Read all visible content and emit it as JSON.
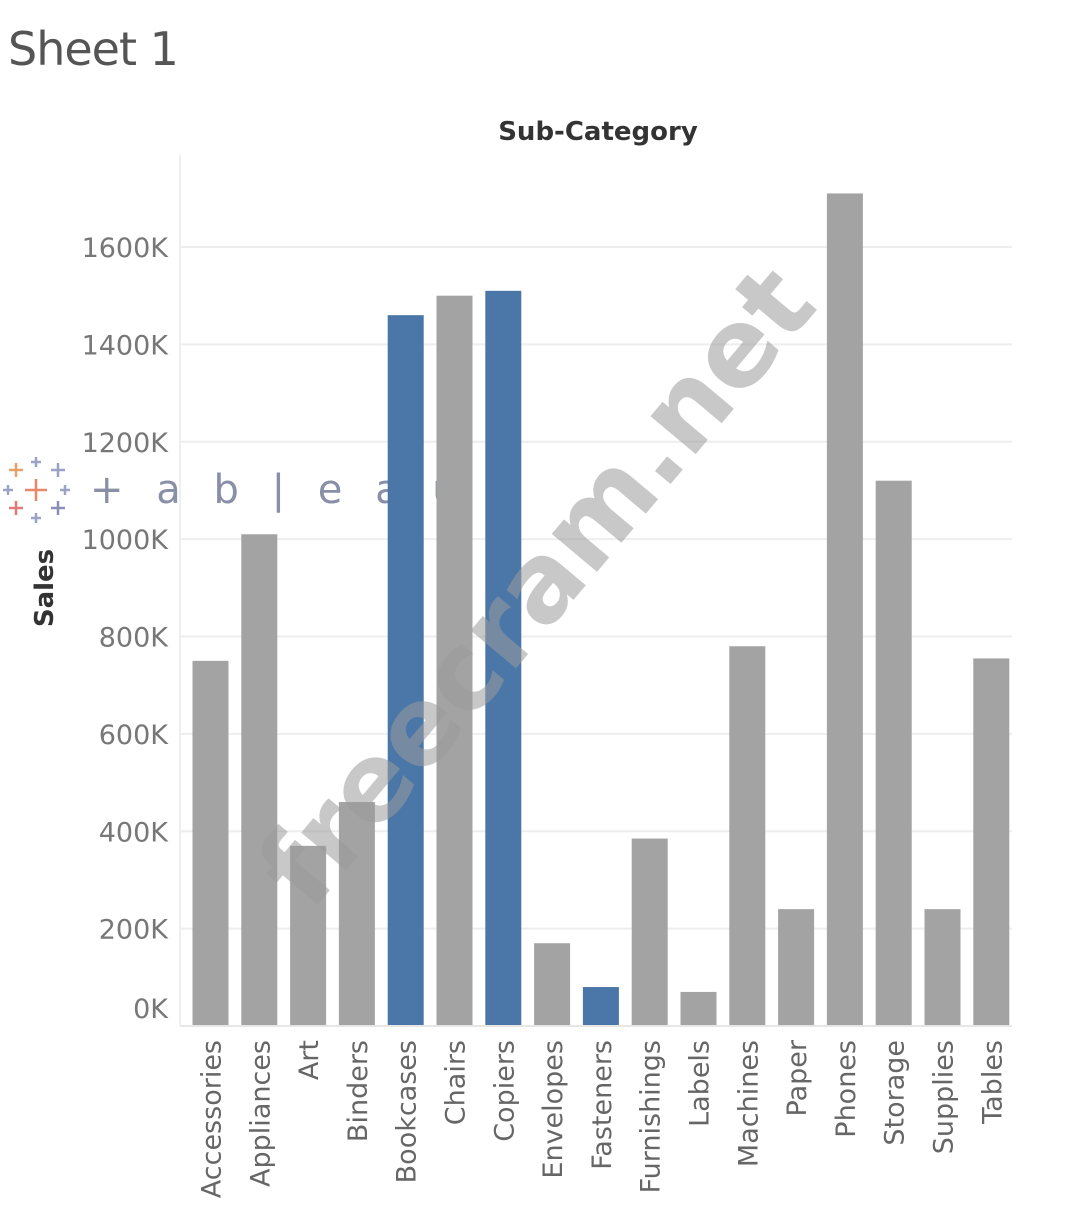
{
  "sheet": {
    "title": "Sheet 1"
  },
  "watermark": {
    "text": "freecram.net"
  },
  "logo": {
    "text": "+ a b | e a u"
  },
  "chart_data": {
    "type": "bar",
    "title": "",
    "xlabel": "Sub-Category",
    "ylabel": "Sales",
    "ylim": [
      0,
      1800000
    ],
    "yticks": [
      0,
      200000,
      400000,
      600000,
      800000,
      1000000,
      1200000,
      1400000,
      1600000
    ],
    "ytick_labels": [
      "0K",
      "200K",
      "400K",
      "600K",
      "800K",
      "1000K",
      "1200K",
      "1400K",
      "1600K"
    ],
    "categories": [
      "Accessories",
      "Appliances",
      "Art",
      "Binders",
      "Bookcases",
      "Chairs",
      "Copiers",
      "Envelopes",
      "Fasteners",
      "Furnishings",
      "Labels",
      "Machines",
      "Paper",
      "Phones",
      "Storage",
      "Supplies",
      "Tables"
    ],
    "values": [
      750000,
      1010000,
      370000,
      460000,
      1460000,
      1500000,
      1510000,
      170000,
      80000,
      385000,
      70000,
      780000,
      240000,
      1710000,
      1120000,
      240000,
      755000
    ],
    "highlighted": [
      false,
      false,
      false,
      false,
      true,
      false,
      true,
      false,
      true,
      false,
      false,
      false,
      false,
      false,
      false,
      false,
      false
    ],
    "colors": {
      "default": "#a3a3a3",
      "highlight": "#4a76a8",
      "grid": "#eeeeee"
    },
    "grid": true,
    "legend": "none",
    "xlabel_position": "top"
  }
}
